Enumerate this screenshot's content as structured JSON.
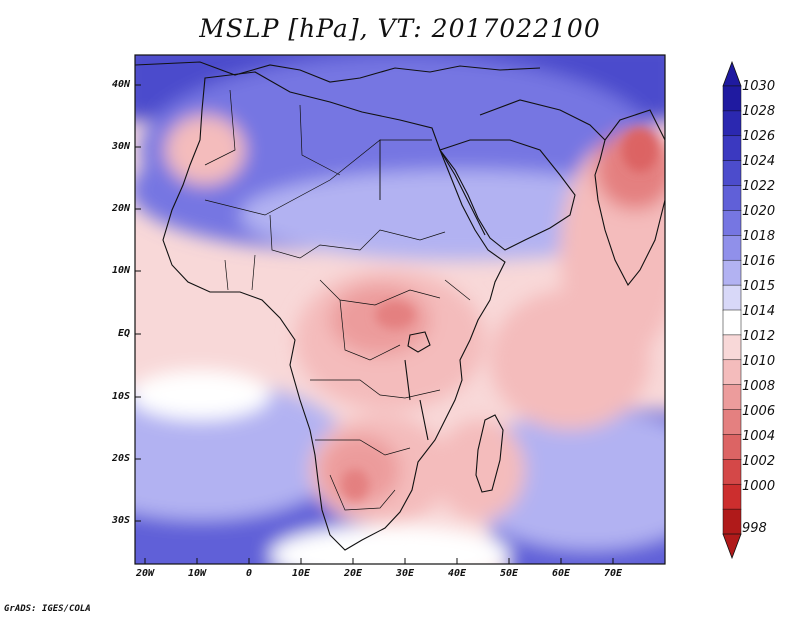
{
  "title": "MSLP [hPa], VT: 2017022100",
  "credit": "GrADS: IGES/COLA",
  "axes": {
    "lat_ticks": [
      "40N",
      "30N",
      "20N",
      "10N",
      "EQ",
      "10S",
      "20S",
      "30S"
    ],
    "lon_ticks": [
      "20W",
      "10W",
      "0",
      "10E",
      "20E",
      "30E",
      "40E",
      "50E",
      "60E",
      "70E"
    ]
  },
  "colorbar": {
    "levels": [
      "1030",
      "1028",
      "1026",
      "1024",
      "1022",
      "1020",
      "1018",
      "1016",
      "1015",
      "1014",
      "1012",
      "1010",
      "1008",
      "1006",
      "1004",
      "1002",
      "1000",
      "998"
    ],
    "colors": [
      "#1f1aa0",
      "#2b28b0",
      "#3b39c0",
      "#4c4ccc",
      "#6060d8",
      "#7676e2",
      "#9090ea",
      "#b2b2f2",
      "#d8d8f8",
      "#ffffff",
      "#f8d8d8",
      "#f4bcbc",
      "#ec9c9c",
      "#e48080",
      "#dc6464",
      "#d44848",
      "#cc2e2e",
      "#b01a1a"
    ]
  },
  "map_colors": {
    "high_outer": "#4c4ccc",
    "high_mid": "#7676e2",
    "high_light": "#b2b2f2",
    "neutral": "#ffffff",
    "low_light": "#f8d8d8",
    "low_mid": "#f4bcbc",
    "low_deep": "#ec9c9c",
    "low_core": "#e48080"
  }
}
